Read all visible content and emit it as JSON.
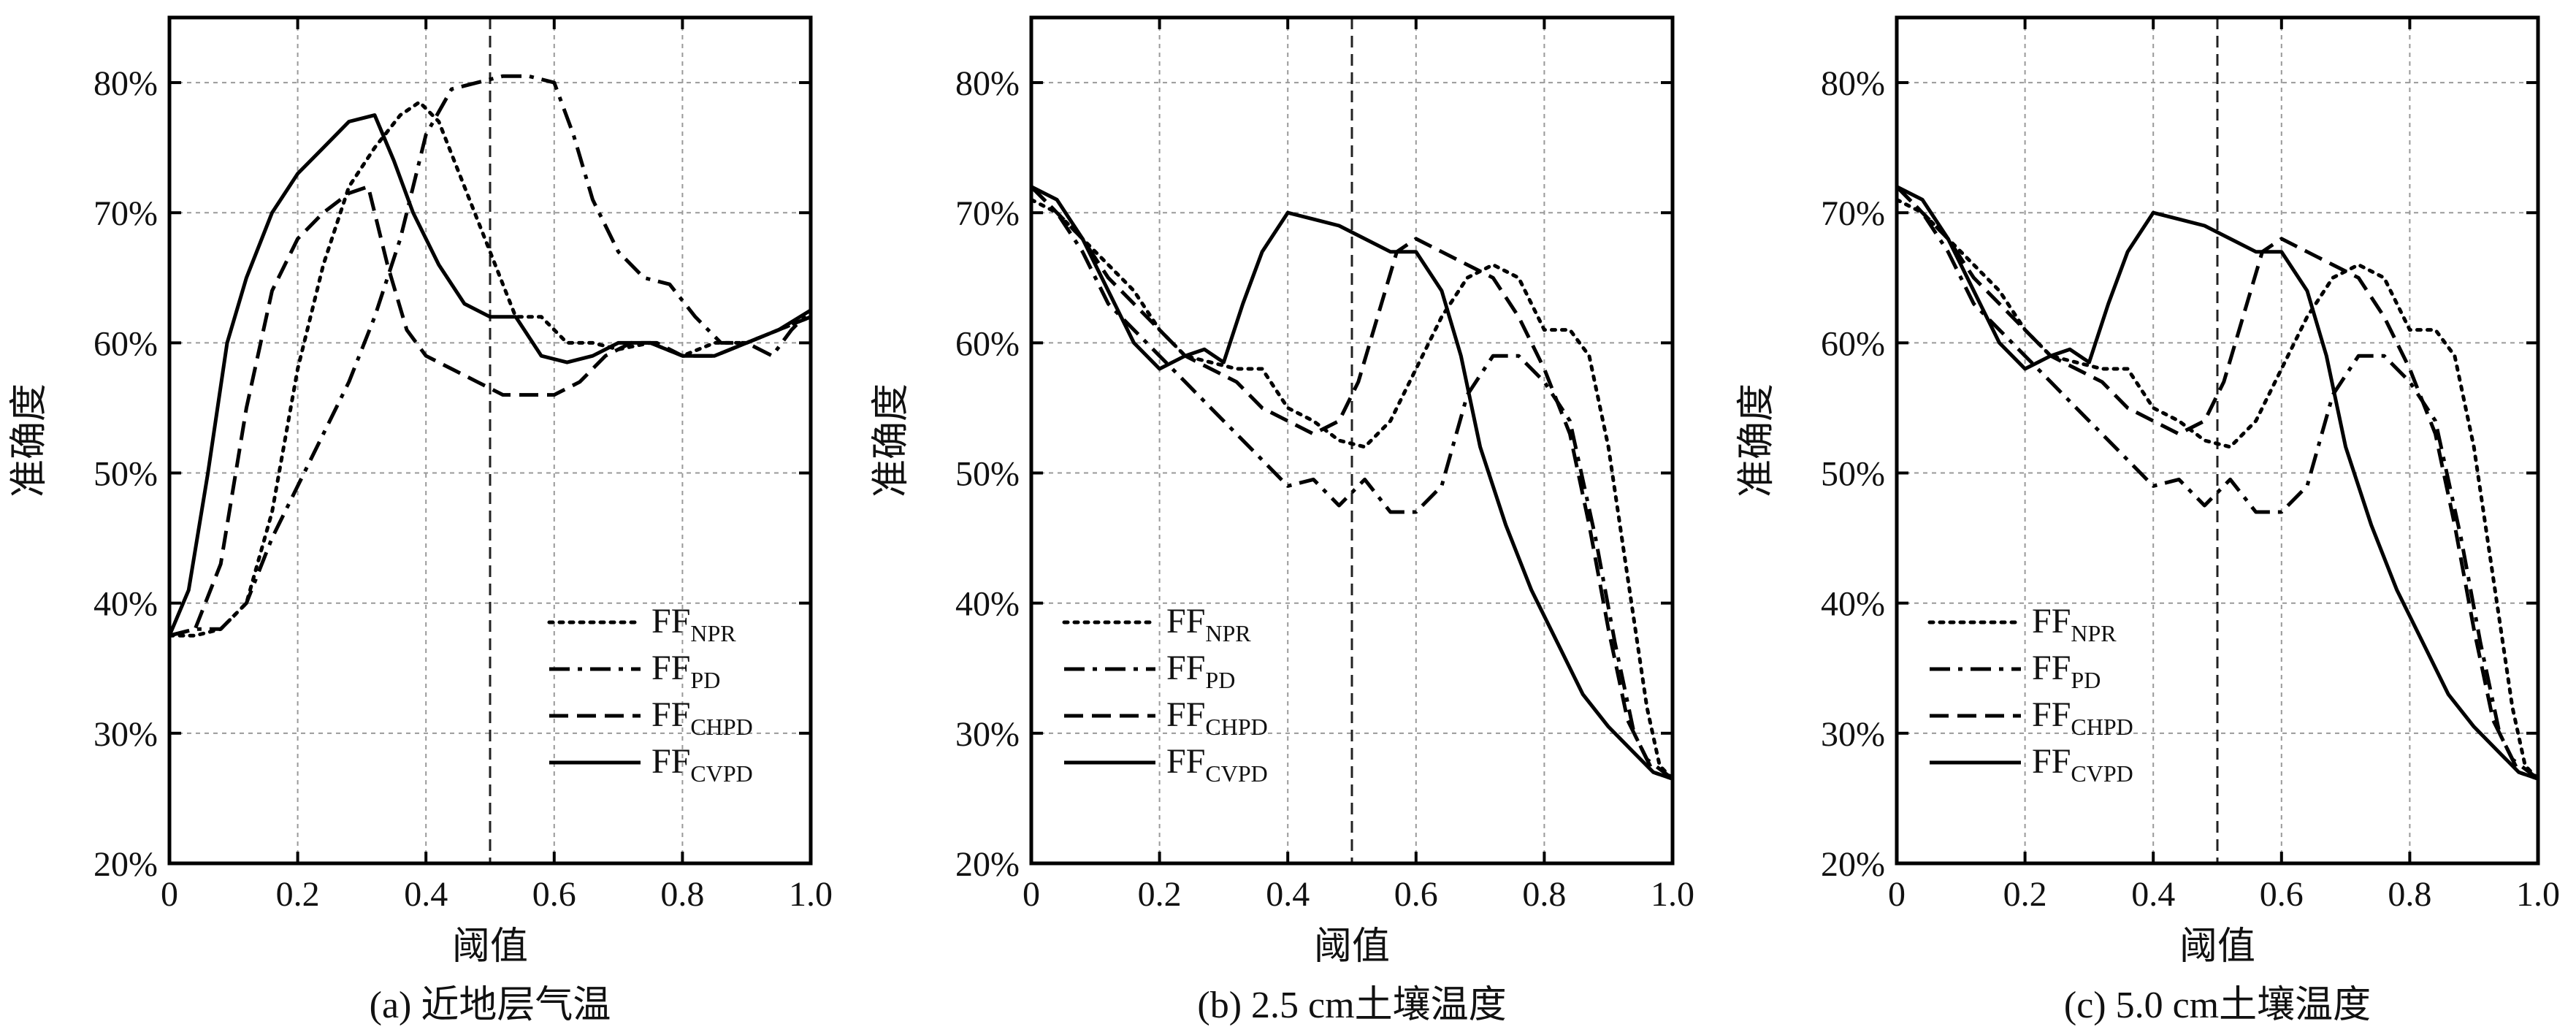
{
  "chart_data": [
    {
      "type": "line",
      "caption": "(a) 近地层气温",
      "xlabel": "阈值",
      "ylabel": "准确度",
      "xlim": [
        0,
        1.0
      ],
      "ylim": [
        20,
        85
      ],
      "xticks": [
        "0",
        "0.2",
        "0.4",
        "0.6",
        "0.8",
        "1.0"
      ],
      "yticks": [
        "20%",
        "30%",
        "40%",
        "50%",
        "60%",
        "70%",
        "80%"
      ],
      "grid": true,
      "vline_x": 0.5,
      "legend_position": "bottom-right",
      "series": [
        {
          "name": "FF",
          "sub": "NPR",
          "dash": "dotted",
          "x": [
            0,
            0.04,
            0.08,
            0.12,
            0.16,
            0.2,
            0.24,
            0.28,
            0.32,
            0.36,
            0.39,
            0.42,
            0.46,
            0.5,
            0.54,
            0.58,
            0.62,
            0.66,
            0.7,
            0.75,
            0.8,
            0.85,
            0.9,
            0.95,
            1.0
          ],
          "y": [
            37.5,
            37.5,
            38,
            40,
            47,
            58,
            66,
            72,
            75,
            77.5,
            78.5,
            77,
            72,
            67,
            62,
            62,
            60,
            60,
            59.5,
            60,
            59,
            60,
            60,
            61,
            62
          ]
        },
        {
          "name": "FF",
          "sub": "PD",
          "dash": "dashdot",
          "x": [
            0,
            0.04,
            0.08,
            0.12,
            0.16,
            0.2,
            0.24,
            0.28,
            0.32,
            0.36,
            0.4,
            0.44,
            0.48,
            0.52,
            0.56,
            0.6,
            0.63,
            0.66,
            0.7,
            0.74,
            0.78,
            0.82,
            0.86,
            0.9,
            0.94,
            0.97,
            1.0
          ],
          "y": [
            37.5,
            38,
            38,
            40,
            45,
            49,
            53,
            57,
            62,
            68,
            76,
            79.5,
            80,
            80.5,
            80.5,
            80,
            76,
            71,
            67,
            65,
            64.5,
            62,
            60,
            60,
            59,
            61,
            62.5
          ]
        },
        {
          "name": "FF",
          "sub": "CHPD",
          "dash": "dashed",
          "x": [
            0,
            0.04,
            0.08,
            0.12,
            0.16,
            0.2,
            0.24,
            0.28,
            0.31,
            0.34,
            0.37,
            0.4,
            0.44,
            0.48,
            0.52,
            0.56,
            0.6,
            0.64,
            0.68,
            0.72,
            0.76,
            0.8,
            0.85,
            0.9,
            0.95,
            1.0
          ],
          "y": [
            37.5,
            38,
            43,
            55,
            64,
            68,
            70,
            71.5,
            72,
            66,
            61,
            59,
            58,
            57,
            56,
            56,
            56,
            57,
            59,
            60,
            60,
            59,
            59,
            60,
            61,
            62
          ]
        },
        {
          "name": "FF",
          "sub": "CVPD",
          "dash": "solid",
          "x": [
            0,
            0.03,
            0.06,
            0.09,
            0.12,
            0.16,
            0.2,
            0.24,
            0.28,
            0.32,
            0.35,
            0.38,
            0.42,
            0.46,
            0.5,
            0.54,
            0.58,
            0.62,
            0.66,
            0.7,
            0.75,
            0.8,
            0.85,
            0.9,
            0.95,
            1.0
          ],
          "y": [
            37.5,
            41,
            50,
            60,
            65,
            70,
            73,
            75,
            77,
            77.5,
            74,
            70,
            66,
            63,
            62,
            62,
            59,
            58.5,
            59,
            60,
            60,
            59,
            59,
            60,
            61,
            62.5
          ]
        }
      ]
    },
    {
      "type": "line",
      "caption": "(b) 2.5 cm土壤温度",
      "xlabel": "阈值",
      "ylabel": "准确度",
      "xlim": [
        0,
        1.0
      ],
      "ylim": [
        20,
        85
      ],
      "xticks": [
        "0",
        "0.2",
        "0.4",
        "0.6",
        "0.8",
        "1.0"
      ],
      "yticks": [
        "20%",
        "30%",
        "40%",
        "50%",
        "60%",
        "70%",
        "80%"
      ],
      "grid": true,
      "vline_x": 0.5,
      "legend_position": "bottom-left",
      "series": [
        {
          "name": "FF",
          "sub": "NPR",
          "dash": "dotted",
          "x": [
            0,
            0.04,
            0.08,
            0.12,
            0.16,
            0.2,
            0.24,
            0.28,
            0.32,
            0.36,
            0.4,
            0.44,
            0.48,
            0.52,
            0.56,
            0.6,
            0.64,
            0.68,
            0.72,
            0.76,
            0.8,
            0.84,
            0.87,
            0.9,
            0.93,
            0.96,
            0.98,
            1.0
          ],
          "y": [
            71,
            70,
            68,
            66,
            64,
            61,
            59,
            58.5,
            58,
            58,
            55,
            54,
            52.5,
            52,
            54,
            58,
            62,
            65,
            66,
            65,
            61,
            61,
            59,
            52,
            42,
            32,
            27.5,
            26.5
          ]
        },
        {
          "name": "FF",
          "sub": "PD",
          "dash": "dashdot",
          "x": [
            0,
            0.04,
            0.08,
            0.12,
            0.16,
            0.2,
            0.24,
            0.28,
            0.32,
            0.36,
            0.4,
            0.44,
            0.48,
            0.52,
            0.56,
            0.6,
            0.64,
            0.68,
            0.72,
            0.76,
            0.8,
            0.84,
            0.88,
            0.91,
            0.94,
            0.97,
            1.0
          ],
          "y": [
            72,
            70,
            67,
            63,
            61,
            59,
            57,
            55,
            53,
            51,
            49,
            49.5,
            47.5,
            49.5,
            47,
            47,
            49,
            56,
            59,
            59,
            57,
            54,
            45,
            37,
            30,
            27,
            26.5
          ]
        },
        {
          "name": "FF",
          "sub": "CHPD",
          "dash": "dashed",
          "x": [
            0,
            0.04,
            0.08,
            0.12,
            0.16,
            0.2,
            0.24,
            0.28,
            0.32,
            0.36,
            0.4,
            0.44,
            0.48,
            0.51,
            0.54,
            0.57,
            0.6,
            0.64,
            0.68,
            0.72,
            0.76,
            0.8,
            0.84,
            0.87,
            0.9,
            0.93,
            0.96,
            1.0
          ],
          "y": [
            72,
            70,
            68,
            65,
            63,
            61,
            59,
            58,
            57,
            55,
            54,
            53,
            54,
            57,
            62,
            67,
            68,
            67,
            66,
            65,
            62,
            58,
            53,
            46,
            38,
            31,
            28,
            26.5
          ]
        },
        {
          "name": "FF",
          "sub": "CVPD",
          "dash": "solid",
          "x": [
            0,
            0.04,
            0.08,
            0.12,
            0.16,
            0.2,
            0.24,
            0.27,
            0.3,
            0.33,
            0.36,
            0.4,
            0.44,
            0.48,
            0.52,
            0.56,
            0.6,
            0.64,
            0.67,
            0.7,
            0.74,
            0.78,
            0.82,
            0.86,
            0.9,
            0.94,
            0.97,
            1.0
          ],
          "y": [
            72,
            71,
            68,
            64,
            60,
            58,
            59,
            59.5,
            58.5,
            63,
            67,
            70,
            69.5,
            69,
            68,
            67,
            67,
            64,
            59,
            52,
            46,
            41,
            37,
            33,
            30.5,
            28.5,
            27,
            26.5
          ]
        }
      ]
    },
    {
      "type": "line",
      "caption": "(c) 5.0 cm土壤温度",
      "xlabel": "阈值",
      "ylabel": "准确度",
      "xlim": [
        0,
        1.0
      ],
      "ylim": [
        20,
        85
      ],
      "xticks": [
        "0",
        "0.2",
        "0.4",
        "0.6",
        "0.8",
        "1.0"
      ],
      "yticks": [
        "20%",
        "30%",
        "40%",
        "50%",
        "60%",
        "70%",
        "80%"
      ],
      "grid": true,
      "vline_x": 0.5,
      "legend_position": "bottom-left",
      "series": [
        {
          "name": "FF",
          "sub": "NPR",
          "dash": "dotted",
          "x": [
            0,
            0.04,
            0.08,
            0.12,
            0.16,
            0.2,
            0.24,
            0.28,
            0.32,
            0.36,
            0.4,
            0.44,
            0.48,
            0.52,
            0.56,
            0.6,
            0.64,
            0.68,
            0.72,
            0.76,
            0.8,
            0.84,
            0.87,
            0.9,
            0.93,
            0.96,
            0.98,
            1.0
          ],
          "y": [
            71,
            70,
            68,
            66,
            64,
            61,
            59,
            58.5,
            58,
            58,
            55,
            54,
            52.5,
            52,
            54,
            58,
            62,
            65,
            66,
            65,
            61,
            61,
            59,
            52,
            42,
            32,
            27.5,
            26.5
          ]
        },
        {
          "name": "FF",
          "sub": "PD",
          "dash": "dashdot",
          "x": [
            0,
            0.04,
            0.08,
            0.12,
            0.16,
            0.2,
            0.24,
            0.28,
            0.32,
            0.36,
            0.4,
            0.44,
            0.48,
            0.52,
            0.56,
            0.6,
            0.64,
            0.68,
            0.72,
            0.76,
            0.8,
            0.84,
            0.88,
            0.91,
            0.94,
            0.97,
            1.0
          ],
          "y": [
            72,
            70,
            67,
            63,
            61,
            59,
            57,
            55,
            53,
            51,
            49,
            49.5,
            47.5,
            49.5,
            47,
            47,
            49,
            56,
            59,
            59,
            57,
            54,
            45,
            37,
            30,
            27,
            26.5
          ]
        },
        {
          "name": "FF",
          "sub": "CHPD",
          "dash": "dashed",
          "x": [
            0,
            0.04,
            0.08,
            0.12,
            0.16,
            0.2,
            0.24,
            0.28,
            0.32,
            0.36,
            0.4,
            0.44,
            0.48,
            0.51,
            0.54,
            0.57,
            0.6,
            0.64,
            0.68,
            0.72,
            0.76,
            0.8,
            0.84,
            0.87,
            0.9,
            0.93,
            0.96,
            1.0
          ],
          "y": [
            72,
            70,
            68,
            65,
            63,
            61,
            59,
            58,
            57,
            55,
            54,
            53,
            54,
            57,
            62,
            67,
            68,
            67,
            66,
            65,
            62,
            58,
            53,
            46,
            38,
            31,
            28,
            26.5
          ]
        },
        {
          "name": "FF",
          "sub": "CVPD",
          "dash": "solid",
          "x": [
            0,
            0.04,
            0.08,
            0.12,
            0.16,
            0.2,
            0.24,
            0.27,
            0.3,
            0.33,
            0.36,
            0.4,
            0.44,
            0.48,
            0.52,
            0.56,
            0.6,
            0.64,
            0.67,
            0.7,
            0.74,
            0.78,
            0.82,
            0.86,
            0.9,
            0.94,
            0.97,
            1.0
          ],
          "y": [
            72,
            71,
            68,
            64,
            60,
            58,
            59,
            59.5,
            58.5,
            63,
            67,
            70,
            69.5,
            69,
            68,
            67,
            67,
            64,
            59,
            52,
            46,
            41,
            37,
            33,
            30.5,
            28.5,
            27,
            26.5
          ]
        }
      ]
    }
  ]
}
